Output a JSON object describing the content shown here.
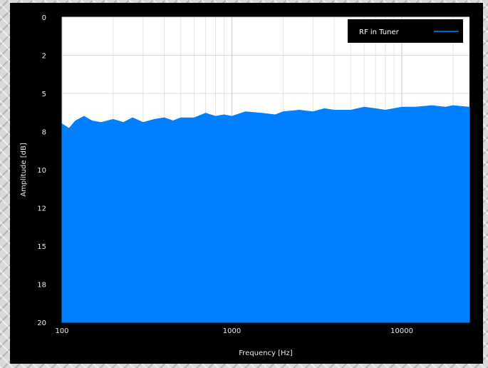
{
  "chart_data": {
    "type": "area",
    "title": "",
    "xlabel": "Frequency [Hz]",
    "ylabel": "Amplitude [dB]",
    "x_scale": "log",
    "xlim": [
      100,
      25000
    ],
    "ylim": [
      20,
      0
    ],
    "y_inverted": true,
    "x_ticks": [
      {
        "value": 100,
        "label": "100"
      },
      {
        "value": 1000,
        "label": "1000"
      },
      {
        "value": 10000,
        "label": "10000"
      }
    ],
    "y_ticks": [
      {
        "value": 0,
        "label": "0"
      },
      {
        "value": 2.5,
        "label": "2"
      },
      {
        "value": 5,
        "label": "5"
      },
      {
        "value": 7.5,
        "label": "8"
      },
      {
        "value": 10,
        "label": "10"
      },
      {
        "value": 12.5,
        "label": "12"
      },
      {
        "value": 15,
        "label": "15"
      },
      {
        "value": 17.5,
        "label": "18"
      },
      {
        "value": 20,
        "label": "20"
      }
    ],
    "grid": true,
    "legend_position": "top-right",
    "series": [
      {
        "name": "RF in Tuner",
        "color": "#0080ff",
        "x": [
          100,
          110,
          120,
          135,
          150,
          170,
          200,
          230,
          260,
          300,
          350,
          400,
          450,
          500,
          600,
          700,
          800,
          900,
          1000,
          1200,
          1500,
          1800,
          2000,
          2500,
          3000,
          3500,
          4000,
          5000,
          6000,
          7000,
          8000,
          10000,
          12000,
          15000,
          18000,
          20000,
          25000
        ],
        "y": [
          7.0,
          7.3,
          6.8,
          6.5,
          6.8,
          6.9,
          6.7,
          6.9,
          6.6,
          6.9,
          6.7,
          6.6,
          6.8,
          6.6,
          6.6,
          6.3,
          6.5,
          6.4,
          6.5,
          6.2,
          6.3,
          6.4,
          6.2,
          6.1,
          6.2,
          6.0,
          6.1,
          6.1,
          5.9,
          6.0,
          6.1,
          5.9,
          5.9,
          5.8,
          5.9,
          5.8,
          5.9
        ]
      }
    ]
  }
}
